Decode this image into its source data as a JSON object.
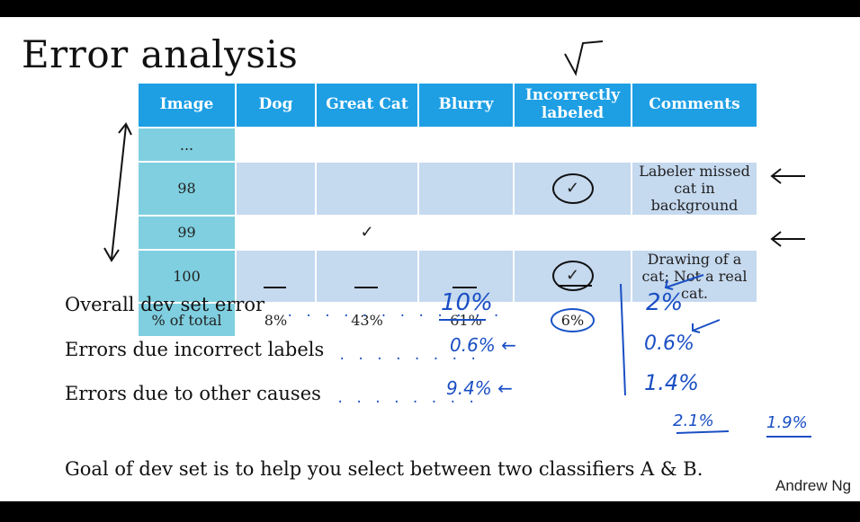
{
  "title": "Error analysis",
  "table": {
    "headers": [
      "Image",
      "Dog",
      "Great Cat",
      "Blurry",
      "Incorrectly labeled",
      "Comments"
    ],
    "rows": [
      {
        "image": "...",
        "dog": "",
        "great_cat": "",
        "blurry": "",
        "incorrect": "",
        "comment": ""
      },
      {
        "image": "98",
        "dog": "",
        "great_cat": "",
        "blurry": "",
        "incorrect": "✓",
        "comment": "Labeler missed cat in background"
      },
      {
        "image": "99",
        "dog": "",
        "great_cat": "✓",
        "blurry": "",
        "incorrect": "",
        "comment": ""
      },
      {
        "image": "100",
        "dog": "",
        "great_cat": "",
        "blurry": "",
        "incorrect": "✓",
        "comment": "Drawing of a cat; Not a real cat."
      }
    ],
    "total": {
      "label": "% of total",
      "dog": "8%",
      "great_cat": "43%",
      "blurry": "61%",
      "incorrect": "6%"
    }
  },
  "metrics": {
    "overall_label": "Overall dev set error",
    "incorrect_label": "Errors due incorrect labels",
    "other_label": "Errors due to other causes"
  },
  "handwriting": {
    "col1": [
      "10%",
      "0.6% ←",
      "9.4% ←"
    ],
    "col2": [
      "2%",
      "0.6%",
      "1.4%"
    ],
    "extra": [
      "2.1%",
      "1.9%"
    ]
  },
  "goal": "Goal of dev set is to help you select between two classifiers A & B.",
  "author": "Andrew Ng",
  "colors": {
    "header_blue": "#1e9fe4",
    "index_teal": "#7fcfe0",
    "row_shade": "#c5d9ef",
    "ink_blue": "#1a4fc4"
  }
}
